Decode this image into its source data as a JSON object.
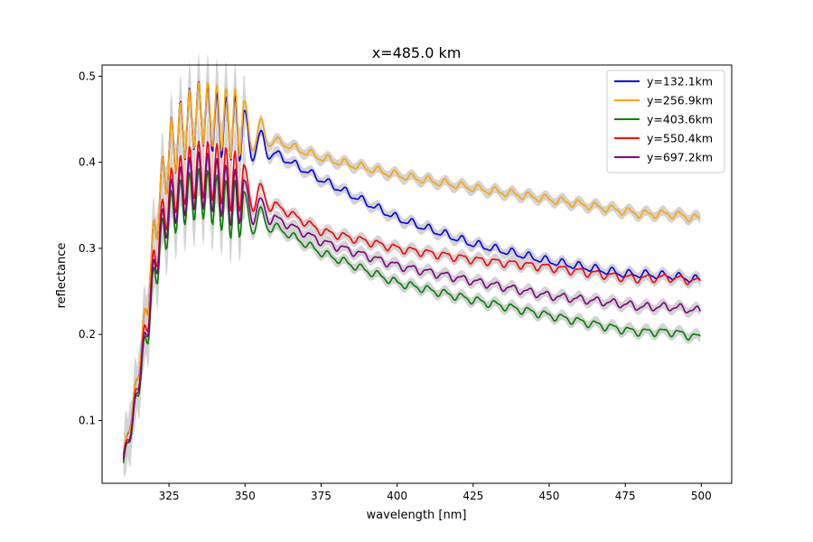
{
  "chart_data": {
    "type": "line",
    "title": "x=485.0 km",
    "xlabel": "wavelength [nm]",
    "ylabel": "reflectance",
    "xlim": [
      303,
      510
    ],
    "ylim": [
      0.027,
      0.513
    ],
    "xticks": [
      325,
      350,
      375,
      400,
      425,
      450,
      475,
      500
    ],
    "yticks": [
      0.1,
      0.2,
      0.3,
      0.4,
      0.5
    ],
    "grid": false,
    "legend_position": "top-right",
    "band_color": "#d3d3d3",
    "x": [
      310,
      313,
      315,
      318,
      320,
      322,
      325,
      328,
      331,
      334,
      336,
      338,
      340,
      343,
      345,
      350,
      360,
      375,
      400,
      425,
      450,
      475,
      480,
      490,
      500
    ],
    "series": [
      {
        "name": "y=132.1km",
        "color": "#0000ff",
        "values": [
          0.06,
          0.11,
          0.16,
          0.24,
          0.31,
          0.36,
          0.41,
          0.43,
          0.445,
          0.455,
          0.458,
          0.452,
          0.446,
          0.44,
          0.445,
          0.43,
          0.41,
          0.38,
          0.335,
          0.305,
          0.285,
          0.27,
          0.27,
          0.268,
          0.263
        ]
      },
      {
        "name": "y=256.9km",
        "color": "#ffa500",
        "values": [
          0.06,
          0.11,
          0.16,
          0.24,
          0.31,
          0.36,
          0.41,
          0.43,
          0.445,
          0.455,
          0.458,
          0.456,
          0.453,
          0.45,
          0.448,
          0.44,
          0.425,
          0.405,
          0.385,
          0.37,
          0.357,
          0.343,
          0.34,
          0.34,
          0.334
        ]
      },
      {
        "name": "y=403.6km",
        "color": "#008000",
        "values": [
          0.052,
          0.095,
          0.14,
          0.205,
          0.26,
          0.3,
          0.335,
          0.35,
          0.358,
          0.362,
          0.365,
          0.36,
          0.356,
          0.35,
          0.348,
          0.34,
          0.325,
          0.295,
          0.26,
          0.24,
          0.222,
          0.205,
          0.203,
          0.203,
          0.196
        ]
      },
      {
        "name": "y=550.4km",
        "color": "#ff0000",
        "values": [
          0.055,
          0.1,
          0.15,
          0.22,
          0.28,
          0.32,
          0.36,
          0.375,
          0.385,
          0.39,
          0.393,
          0.39,
          0.388,
          0.385,
          0.382,
          0.37,
          0.35,
          0.32,
          0.3,
          0.287,
          0.278,
          0.266,
          0.265,
          0.266,
          0.261
        ]
      },
      {
        "name": "y=697.2km",
        "color": "#800080",
        "values": [
          0.054,
          0.098,
          0.145,
          0.212,
          0.27,
          0.31,
          0.348,
          0.362,
          0.372,
          0.378,
          0.38,
          0.377,
          0.373,
          0.368,
          0.362,
          0.355,
          0.335,
          0.308,
          0.28,
          0.262,
          0.245,
          0.235,
          0.232,
          0.232,
          0.227
        ]
      }
    ]
  }
}
